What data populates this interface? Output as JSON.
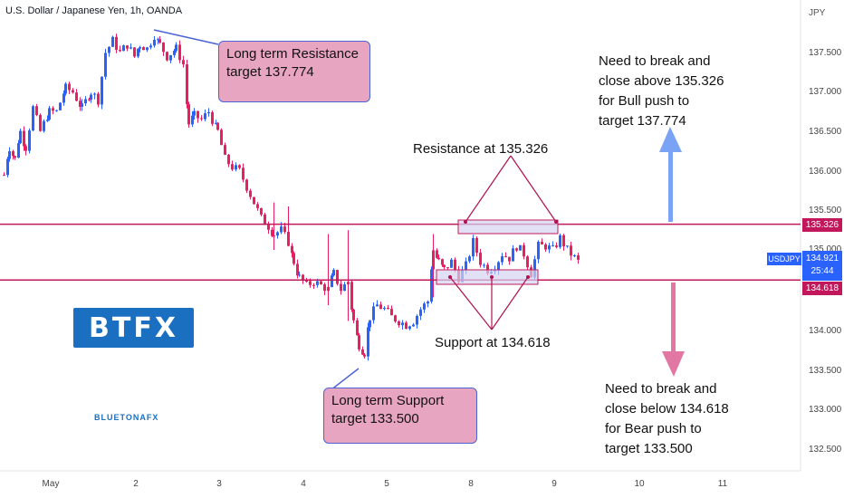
{
  "header": {
    "title": "U.S. Dollar / Japanese Yen, 1h, OANDA",
    "currency": "JPY"
  },
  "price_scale": {
    "ticks": [
      "137.500",
      "137.000",
      "136.500",
      "136.000",
      "135.500",
      "135.000",
      "134.000",
      "133.500",
      "133.000",
      "132.500"
    ],
    "resistance_label": "135.326",
    "support_label": "134.618",
    "symbol": "USDJPY",
    "current_price": "134.921",
    "countdown": "25:44"
  },
  "time_axis": {
    "ticks": [
      "May",
      "2",
      "3",
      "4",
      "5",
      "8",
      "9",
      "10",
      "11"
    ]
  },
  "annotations": {
    "long_resistance": [
      "Long term Resistance",
      "target 137.774"
    ],
    "long_support": [
      "Long term Support",
      "target 133.500"
    ],
    "resistance_text": "Resistance at 135.326",
    "support_text": "Support at 134.618",
    "bull_note": [
      "Need to break and",
      "close above 135.326",
      "for Bull push to",
      "target 137.774"
    ],
    "bear_note": [
      "Need to break and",
      "close below 134.618",
      "for Bear push to",
      "target 133.500"
    ]
  },
  "branding": {
    "logo": "BTFX",
    "brand_text": "BLUETONAFX"
  },
  "colors": {
    "up": "#2962ff",
    "down": "#e91e63",
    "level_line": "#c2185b",
    "callout_fill": "#e8a5c2",
    "callout_border": "#4b63d4",
    "bull_arrow": "#7aa3f5",
    "bear_arrow": "#e377a3"
  },
  "chart_data": {
    "type": "candlestick",
    "symbol": "USDJPY",
    "timeframe": "1h",
    "ylim": [
      132.3,
      138.0
    ],
    "horizontal_levels": [
      {
        "name": "Resistance",
        "value": 135.326
      },
      {
        "name": "Support",
        "value": 134.618
      }
    ],
    "close_path": [
      [
        0,
        135.95
      ],
      [
        6,
        136.3
      ],
      [
        12,
        136.15
      ],
      [
        18,
        136.5
      ],
      [
        24,
        136.3
      ],
      [
        32,
        136.8
      ],
      [
        40,
        136.5
      ],
      [
        50,
        136.75
      ],
      [
        58,
        136.75
      ],
      [
        68,
        137.05
      ],
      [
        76,
        137.0
      ],
      [
        86,
        136.8
      ],
      [
        96,
        137.0
      ],
      [
        104,
        136.9
      ],
      [
        112,
        137.5
      ],
      [
        120,
        137.65
      ],
      [
        128,
        137.5
      ],
      [
        136,
        137.6
      ],
      [
        144,
        137.45
      ],
      [
        150,
        137.6
      ],
      [
        158,
        137.55
      ],
      [
        166,
        137.72
      ],
      [
        172,
        137.6
      ],
      [
        180,
        137.45
      ],
      [
        190,
        137.55
      ],
      [
        198,
        137.35
      ],
      [
        204,
        136.6
      ],
      [
        210,
        136.7
      ],
      [
        218,
        136.65
      ],
      [
        226,
        136.75
      ],
      [
        236,
        136.5
      ],
      [
        244,
        136.15
      ],
      [
        252,
        136.05
      ],
      [
        260,
        136.0
      ],
      [
        268,
        135.8
      ],
      [
        276,
        135.6
      ],
      [
        284,
        135.4
      ],
      [
        292,
        135.3
      ],
      [
        298,
        135.2
      ],
      [
        306,
        135.25
      ],
      [
        314,
        135.1
      ],
      [
        320,
        134.85
      ],
      [
        326,
        134.65
      ],
      [
        334,
        134.55
      ],
      [
        342,
        134.6
      ],
      [
        350,
        134.55
      ],
      [
        358,
        134.5
      ],
      [
        364,
        134.7
      ],
      [
        372,
        134.5
      ],
      [
        380,
        134.6
      ],
      [
        386,
        134.1
      ],
      [
        392,
        133.8
      ],
      [
        398,
        133.7
      ],
      [
        404,
        134.15
      ],
      [
        412,
        134.3
      ],
      [
        420,
        134.25
      ],
      [
        428,
        134.15
      ],
      [
        436,
        134.1
      ],
      [
        444,
        134.05
      ],
      [
        452,
        134.1
      ],
      [
        460,
        134.25
      ],
      [
        468,
        134.35
      ],
      [
        474,
        135.0
      ],
      [
        480,
        134.85
      ],
      [
        486,
        134.75
      ],
      [
        494,
        134.85
      ],
      [
        502,
        134.65
      ],
      [
        510,
        134.8
      ],
      [
        518,
        135.1
      ],
      [
        526,
        134.85
      ],
      [
        534,
        134.75
      ],
      [
        542,
        134.8
      ],
      [
        550,
        134.95
      ],
      [
        558,
        134.9
      ],
      [
        566,
        135.05
      ],
      [
        574,
        134.95
      ],
      [
        582,
        134.7
      ],
      [
        590,
        135.05
      ],
      [
        598,
        135.05
      ],
      [
        606,
        135.0
      ],
      [
        614,
        135.15
      ],
      [
        622,
        135.0
      ],
      [
        630,
        134.9
      ],
      [
        638,
        134.8
      ]
    ]
  }
}
